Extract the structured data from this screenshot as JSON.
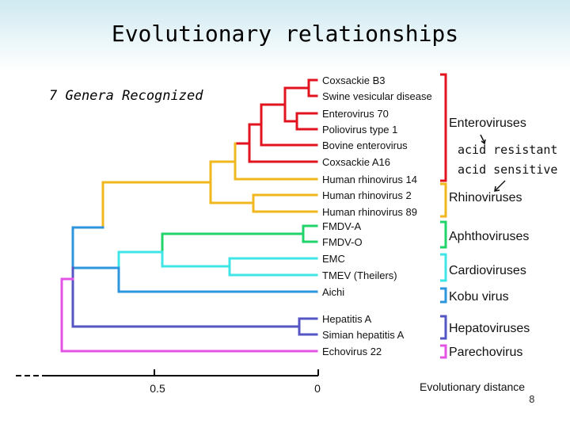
{
  "slide": {
    "title": "Evolutionary relationships",
    "subtitle": "7 Genera Recognized",
    "page_number": "8"
  },
  "colors": {
    "entero": "#e0131e",
    "rhino": "#f0b81e",
    "aphtho": "#20d36a",
    "cardio": "#3fe5e5",
    "aichi": "#2c95dc",
    "hepato": "#5555c4",
    "parecho": "#e454e4"
  },
  "taxa": [
    "Coxsackie B3",
    "Swine vesicular disease",
    "Enterovirus 70",
    "Poliovirus type 1",
    "Bovine enterovirus",
    "Coxsackie A16",
    "Human rhinovirus 14",
    "Human rhinovirus 2",
    "Human rhinovirus 89",
    "FMDV-A",
    "FMDV-O",
    "EMC",
    "TMEV (Theilers)",
    "Aichi",
    "Hepatitis A",
    "Simian hepatitis A",
    "Echovirus 22"
  ],
  "genera": [
    {
      "label": "Enteroviruses",
      "color": "#e0131e"
    },
    {
      "label": "Rhinoviruses",
      "color": "#f0b81e"
    },
    {
      "label": "Aphthoviruses",
      "color": "#20d36a"
    },
    {
      "label": "Cardioviruses",
      "color": "#3fe5e5"
    },
    {
      "label": "Kobu virus",
      "color": "#2c95dc"
    },
    {
      "label": "Hepatoviruses",
      "color": "#5555c4"
    },
    {
      "label": "Parechovirus",
      "color": "#e454e4"
    }
  ],
  "annotations": {
    "acid_resistant": "acid resistant",
    "acid_sensitive": "acid sensitive"
  },
  "axis": {
    "label": "Evolutionary distance",
    "ticks": [
      "0.5",
      "0"
    ]
  }
}
